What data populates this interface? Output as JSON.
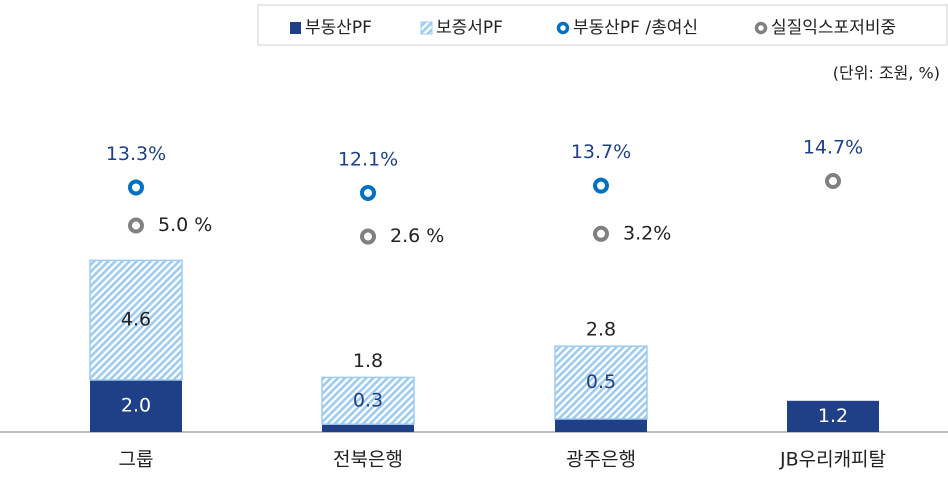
{
  "chart_data": {
    "type": "bar",
    "categories": [
      "그룹",
      "전북은행",
      "광주은행",
      "JB우리캐피탈"
    ],
    "unit_note": "(단위: 조원, %)",
    "ylim": [
      0,
      15
    ],
    "y2lim": [
      -40,
      45
    ],
    "stacked": true,
    "series": [
      {
        "name": "부동산PF",
        "color": "#1f3f86",
        "values": [
          2.0,
          0.3,
          0.5,
          1.2
        ],
        "value_labels": [
          "2.0",
          "0.3",
          "0.5",
          "1.2"
        ]
      },
      {
        "name": "보증서PF",
        "color": "#9ecbf0",
        "hatch": true,
        "values": [
          4.6,
          1.8,
          2.8,
          null
        ]
      },
      {
        "name": "부동산PF /총여신",
        "color": "#0070c0",
        "type": "marker",
        "axis": "y2",
        "values": [
          13.3,
          12.1,
          13.7,
          null
        ],
        "value_labels": [
          "13.3%",
          "12.1%",
          "13.7%",
          null
        ]
      },
      {
        "name": "실질익스포저비중",
        "color": "#808080",
        "type": "marker",
        "axis": "y2",
        "values": [
          5.0,
          2.6,
          3.2,
          14.7
        ],
        "value_labels": [
          "5.0 %",
          "2.6 %",
          "3.2%",
          "14.7%"
        ]
      }
    ]
  }
}
